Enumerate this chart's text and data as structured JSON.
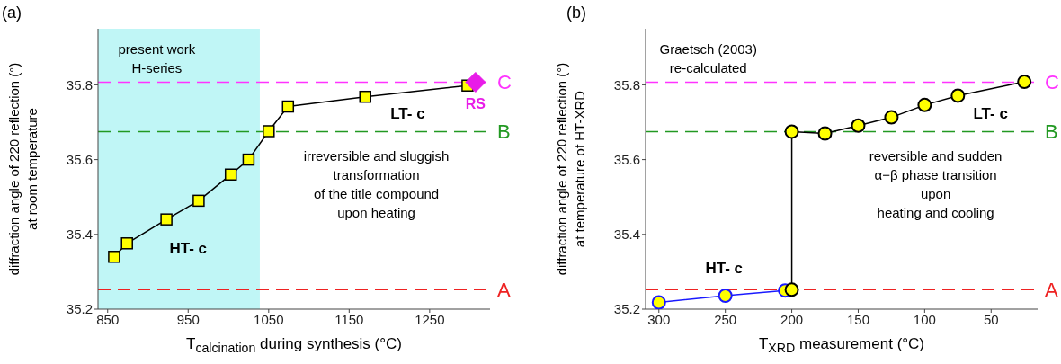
{
  "chart_data": [
    {
      "type": "line",
      "title": "(a)",
      "xlabel": "T$_{calcination}$ during synthesis (°C)",
      "ylabel": "diffraction angle of 220 reflection (°)\nat room temperature",
      "xlim": [
        838,
        1325
      ],
      "xticks": [
        850,
        950,
        1050,
        1150,
        1250
      ],
      "ylim": [
        35.2,
        35.95
      ],
      "yticks": [
        35.2,
        35.4,
        35.6,
        35.8
      ],
      "series": [
        {
          "marker": "square",
          "color": "#000000",
          "colors": [
            "#ffff00",
            "#ffff00",
            "#ffff00",
            "#ffff00",
            "#ffff00",
            "#ffff00",
            "#ffff00",
            "#ffff00",
            "#ffff00",
            "#ffff00"
          ],
          "x": [
            858,
            874,
            923,
            963,
            1003,
            1025,
            1050,
            1074,
            1170,
            1297
          ],
          "values": [
            35.34,
            35.376,
            35.44,
            35.49,
            35.56,
            35.6,
            35.676,
            35.742,
            35.768,
            35.798
          ]
        },
        {
          "type": "scatter",
          "name": "RS",
          "marker": "diamond",
          "color": "#e81ce8",
          "x": [
            1307
          ],
          "values": [
            35.807
          ]
        }
      ],
      "bands": [
        {
          "axis": "x",
          "from": 838,
          "to": 1039,
          "color": "#c0f6f6"
        }
      ],
      "ref_lines": [
        {
          "axis": "y",
          "value": 35.807,
          "label": "C",
          "color": "#ff33ff",
          "line_style": "dashed"
        },
        {
          "axis": "y",
          "value": 35.675,
          "label": "B",
          "color": "#229922",
          "line_style": "dashed"
        },
        {
          "axis": "y",
          "value": 35.252,
          "label": "A",
          "color": "#ee2222",
          "line_style": "dashed"
        }
      ],
      "annotations": [
        "present work\nH-series",
        "HT- c",
        "LT- c",
        "irreversible and sluggish\ntransformation\nof the title compound\nupon heating"
      ]
    },
    {
      "type": "line",
      "title": "(b)",
      "xlabel": "T$_{XRD}$ measurement (°C)",
      "ylabel": "diffraction angle of 220 reflection (°)\nat temperature of HT-XRD",
      "xlim": [
        310,
        15
      ],
      "xticks": [
        300,
        250,
        200,
        150,
        100,
        50
      ],
      "ylim": [
        35.2,
        35.95
      ],
      "yticks": [
        35.2,
        35.4,
        35.6,
        35.8
      ],
      "series": [
        {
          "marker": "circle",
          "color": "#1a1aff",
          "colors": [
            "#ffff00",
            "#ffff00",
            "#ffff00"
          ],
          "x": [
            300,
            250,
            205
          ],
          "values": [
            35.218,
            35.236,
            35.25
          ]
        },
        {
          "marker": "circle",
          "color": "#000000",
          "colors": [
            "#ffff00",
            "#ffff00",
            "#ffff00",
            "#ffff00",
            "#ffff00",
            "#ffff00",
            "#ffff00",
            "#ffff00"
          ],
          "x": [
            200,
            200,
            175,
            150,
            125,
            100,
            75,
            25
          ],
          "values": [
            35.252,
            35.675,
            35.67,
            35.691,
            35.713,
            35.746,
            35.771,
            35.808
          ]
        }
      ],
      "ref_lines": [
        {
          "axis": "y",
          "value": 35.807,
          "label": "C",
          "color": "#ff33ff",
          "line_style": "dashed"
        },
        {
          "axis": "y",
          "value": 35.675,
          "label": "B",
          "color": "#229922",
          "line_style": "dashed"
        },
        {
          "axis": "y",
          "value": 35.252,
          "label": "A",
          "color": "#ee2222",
          "line_style": "dashed"
        }
      ],
      "annotations": [
        "Graetsch (2003)\nre-calculated",
        "HT- c",
        "LT- c",
        "reversible and sudden\nα−β phase transition\nupon\nheating and cooling"
      ]
    }
  ]
}
